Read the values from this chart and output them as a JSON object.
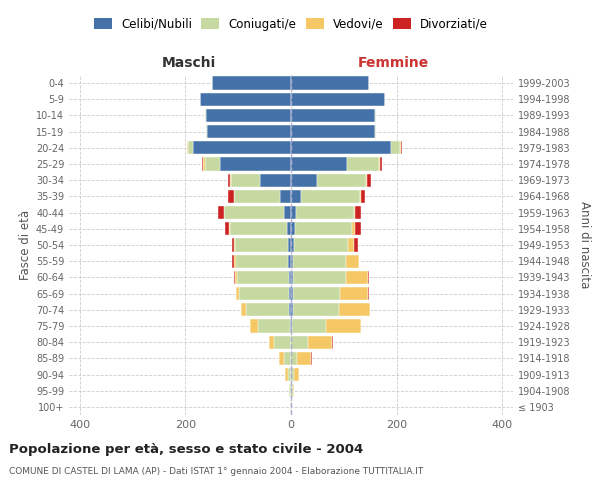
{
  "age_groups": [
    "100+",
    "95-99",
    "90-94",
    "85-89",
    "80-84",
    "75-79",
    "70-74",
    "65-69",
    "60-64",
    "55-59",
    "50-54",
    "45-49",
    "40-44",
    "35-39",
    "30-34",
    "25-29",
    "20-24",
    "15-19",
    "10-14",
    "5-9",
    "0-4"
  ],
  "birth_years": [
    "≤ 1903",
    "1904-1908",
    "1909-1913",
    "1914-1918",
    "1919-1923",
    "1924-1928",
    "1929-1933",
    "1934-1938",
    "1939-1943",
    "1944-1948",
    "1949-1953",
    "1954-1958",
    "1959-1963",
    "1964-1968",
    "1969-1973",
    "1974-1978",
    "1979-1983",
    "1984-1988",
    "1989-1993",
    "1994-1998",
    "1999-2003"
  ],
  "male_celibi": [
    0,
    0,
    0,
    0,
    0,
    2,
    3,
    4,
    4,
    5,
    6,
    8,
    14,
    20,
    58,
    135,
    185,
    158,
    160,
    172,
    150
  ],
  "male_coniugati": [
    1,
    3,
    6,
    14,
    32,
    60,
    82,
    95,
    98,
    100,
    100,
    108,
    112,
    88,
    55,
    28,
    10,
    2,
    2,
    0,
    0
  ],
  "male_vedovi": [
    0,
    1,
    5,
    8,
    10,
    16,
    10,
    5,
    4,
    2,
    1,
    1,
    0,
    0,
    2,
    4,
    2,
    0,
    0,
    0,
    0
  ],
  "male_divorziati": [
    0,
    0,
    0,
    0,
    0,
    0,
    0,
    0,
    2,
    5,
    5,
    8,
    12,
    12,
    4,
    2,
    0,
    0,
    0,
    0,
    0
  ],
  "female_nubili": [
    0,
    0,
    0,
    0,
    0,
    2,
    3,
    3,
    4,
    4,
    5,
    8,
    10,
    18,
    50,
    105,
    190,
    158,
    158,
    178,
    148
  ],
  "female_coniugate": [
    1,
    3,
    5,
    12,
    32,
    65,
    88,
    90,
    100,
    100,
    102,
    108,
    110,
    112,
    92,
    62,
    16,
    3,
    3,
    0,
    0
  ],
  "female_vedove": [
    0,
    3,
    10,
    25,
    45,
    65,
    58,
    52,
    42,
    25,
    12,
    5,
    2,
    2,
    2,
    2,
    2,
    0,
    0,
    0,
    0
  ],
  "female_divorziate": [
    0,
    0,
    0,
    2,
    2,
    0,
    0,
    2,
    2,
    0,
    8,
    12,
    10,
    8,
    8,
    4,
    2,
    0,
    0,
    0,
    0
  ],
  "color_celibi": "#4472a8",
  "color_coniugati": "#c5d9a0",
  "color_vedovi": "#f5c865",
  "color_divorziati": "#cc2222",
  "title": "Popolazione per età, sesso e stato civile - 2004",
  "subtitle": "COMUNE DI CASTEL DI LAMA (AP) - Dati ISTAT 1° gennaio 2004 - Elaborazione TUTTITALIA.IT",
  "label_maschi": "Maschi",
  "label_femmine": "Femmine",
  "label_fasce": "Fasce di età",
  "label_anni": "Anni di nascita",
  "legend_labels": [
    "Celibi/Nubili",
    "Coniugati/e",
    "Vedovi/e",
    "Divorziati/e"
  ],
  "xlim": 420,
  "bg_color": "#ffffff"
}
